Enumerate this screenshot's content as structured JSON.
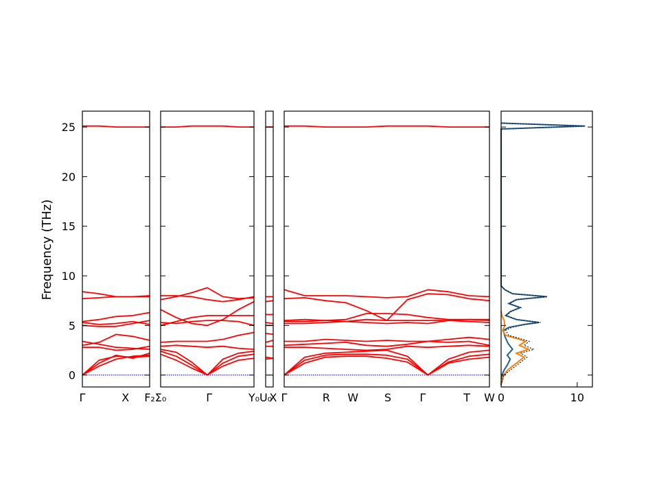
{
  "chart_data": {
    "type": "line",
    "ylabel": "Frequency (THz)",
    "ylim": [
      -1.2,
      26.6
    ],
    "y_ticks": [
      "0",
      "5",
      "10",
      "15",
      "20",
      "25"
    ],
    "y_tick_values": [
      0,
      5,
      10,
      15,
      20,
      25
    ],
    "band_color": "#ff0000",
    "zero_line_color": "#0000cc",
    "panels": [
      {
        "id": "panel-1",
        "x_ticks": [
          "Γ",
          "X",
          "F₂"
        ],
        "x_tick_pos": [
          0.0,
          0.64,
          1.0
        ],
        "bands": [
          {
            "y": [
              0.0,
              0.9,
              1.6,
              1.9,
              2.0
            ]
          },
          {
            "y": [
              0.0,
              1.2,
              2.0,
              1.7,
              2.2
            ]
          },
          {
            "y": [
              0.0,
              1.5,
              1.9,
              1.8,
              1.9
            ]
          },
          {
            "y": [
              2.8,
              2.8,
              2.5,
              2.6,
              2.9
            ]
          },
          {
            "y": [
              3.0,
              3.3,
              4.1,
              3.9,
              3.5
            ]
          },
          {
            "y": [
              3.4,
              3.1,
              2.8,
              2.7,
              2.6
            ]
          },
          {
            "y": [
              5.0,
              4.9,
              4.9,
              5.2,
              5.5
            ]
          },
          {
            "y": [
              5.3,
              5.1,
              5.2,
              5.4,
              5.1
            ]
          },
          {
            "y": [
              5.4,
              5.6,
              5.9,
              6.0,
              6.3
            ]
          },
          {
            "y": [
              7.7,
              7.8,
              7.9,
              7.9,
              8.0
            ]
          },
          {
            "y": [
              8.4,
              8.2,
              7.9,
              7.9,
              7.9
            ]
          },
          {
            "y": [
              25.1,
              25.1,
              25.0,
              25.0,
              25.0
            ]
          }
        ]
      },
      {
        "id": "panel-2",
        "x_ticks": [
          "Σ₀",
          "Γ",
          "Y₀"
        ],
        "x_tick_pos": [
          0.0,
          0.52,
          1.0
        ],
        "bands": [
          {
            "y": [
              2.1,
              1.5,
              0.7,
              0.0,
              0.9,
              1.5,
              1.7
            ]
          },
          {
            "y": [
              2.4,
              1.9,
              1.0,
              0.0,
              1.2,
              1.9,
              2.1
            ]
          },
          {
            "y": [
              2.6,
              2.3,
              1.3,
              0.0,
              1.6,
              2.2,
              2.4
            ]
          },
          {
            "y": [
              2.9,
              3.0,
              2.9,
              2.8,
              2.9,
              2.7,
              2.6
            ]
          },
          {
            "y": [
              3.3,
              3.4,
              3.4,
              3.4,
              3.6,
              4.0,
              4.3
            ]
          },
          {
            "y": [
              5.3,
              5.2,
              5.4,
              5.5,
              5.5,
              5.4,
              5.0
            ]
          },
          {
            "y": [
              5.0,
              5.4,
              5.8,
              6.0,
              6.0,
              6.0,
              6.0
            ]
          },
          {
            "y": [
              6.6,
              5.8,
              5.2,
              5.0,
              5.6,
              6.6,
              7.4
            ]
          },
          {
            "y": [
              7.6,
              7.9,
              8.3,
              8.8,
              7.9,
              7.7,
              7.8
            ]
          },
          {
            "y": [
              8.0,
              8.0,
              7.9,
              7.6,
              7.4,
              7.6,
              7.9
            ]
          },
          {
            "y": [
              25.0,
              25.0,
              25.1,
              25.1,
              25.1,
              25.0,
              25.0
            ]
          }
        ]
      },
      {
        "id": "panel-3",
        "x_ticks": [
          "U₀",
          "X"
        ],
        "x_tick_pos": [
          0.0,
          1.0
        ],
        "bands": [
          {
            "y": [
              1.6,
              1.7
            ]
          },
          {
            "y": [
              1.8,
              1.7
            ]
          },
          {
            "y": [
              2.9,
              2.9
            ]
          },
          {
            "y": [
              3.3,
              3.5
            ]
          },
          {
            "y": [
              4.2,
              4.1
            ]
          },
          {
            "y": [
              5.0,
              5.0
            ]
          },
          {
            "y": [
              5.3,
              5.2
            ]
          },
          {
            "y": [
              6.1,
              6.1
            ]
          },
          {
            "y": [
              7.4,
              7.5
            ]
          },
          {
            "y": [
              7.9,
              7.9
            ]
          },
          {
            "y": [
              25.0,
              25.0
            ]
          }
        ]
      },
      {
        "id": "panel-4",
        "x_ticks": [
          "Γ",
          "R",
          "W",
          "S",
          "Γ",
          "T",
          "W"
        ],
        "x_tick_pos": [
          0.0,
          0.205,
          0.335,
          0.505,
          0.675,
          0.89,
          1.0
        ],
        "bands": [
          {
            "y": [
              0.0,
              1.2,
              1.8,
              1.9,
              1.9,
              1.7,
              1.3,
              0.0,
              1.2,
              1.6,
              1.8
            ]
          },
          {
            "y": [
              0.0,
              1.5,
              2.0,
              2.1,
              2.1,
              2.0,
              1.6,
              0.0,
              1.3,
              1.9,
              2.1
            ]
          },
          {
            "y": [
              0.0,
              1.8,
              2.2,
              2.3,
              2.4,
              2.5,
              1.9,
              0.0,
              1.6,
              2.3,
              2.5
            ]
          },
          {
            "y": [
              2.8,
              2.8,
              2.7,
              2.6,
              2.5,
              2.6,
              2.9,
              2.8,
              2.9,
              3.0,
              2.9
            ]
          },
          {
            "y": [
              3.0,
              3.1,
              3.2,
              3.3,
              3.0,
              2.9,
              3.1,
              3.4,
              3.3,
              3.4,
              3.0
            ]
          },
          {
            "y": [
              3.4,
              3.4,
              3.6,
              3.5,
              3.4,
              3.5,
              3.4,
              3.4,
              3.6,
              3.8,
              3.6
            ]
          },
          {
            "y": [
              5.2,
              5.2,
              5.3,
              5.4,
              5.3,
              5.2,
              5.3,
              5.2,
              5.5,
              5.4,
              5.3
            ]
          },
          {
            "y": [
              5.4,
              5.4,
              5.5,
              5.4,
              5.6,
              5.5,
              5.5,
              5.5,
              5.5,
              5.6,
              5.5
            ]
          },
          {
            "y": [
              5.5,
              5.6,
              5.5,
              5.6,
              6.2,
              6.2,
              6.1,
              5.8,
              5.6,
              5.6,
              5.6
            ]
          },
          {
            "y": [
              7.7,
              7.8,
              7.5,
              7.3,
              6.5,
              5.5,
              7.6,
              8.2,
              8.1,
              7.7,
              7.5
            ]
          },
          {
            "y": [
              8.6,
              8.0,
              8.0,
              8.0,
              7.9,
              7.8,
              7.9,
              8.6,
              8.4,
              8.0,
              7.9
            ]
          },
          {
            "y": [
              25.1,
              25.1,
              25.0,
              25.0,
              25.0,
              25.1,
              25.1,
              25.1,
              25.0,
              25.0,
              25.0
            ]
          }
        ]
      }
    ],
    "dos": {
      "x_ticks": [
        "0",
        "10"
      ],
      "x_tick_values": [
        0,
        10
      ],
      "xlim": [
        0,
        12
      ],
      "series": [
        {
          "color": "#1f5f9a",
          "points": [
            [
              0.0,
              -1
            ],
            [
              0.1,
              0
            ],
            [
              0.4,
              0.5
            ],
            [
              0.8,
              1.0
            ],
            [
              1.2,
              1.6
            ],
            [
              0.8,
              2.0
            ],
            [
              1.5,
              2.6
            ],
            [
              0.9,
              3.2
            ],
            [
              0.5,
              3.9
            ],
            [
              0.3,
              4.5
            ],
            [
              1.0,
              4.8
            ],
            [
              3.0,
              5.1
            ],
            [
              5.0,
              5.3
            ],
            [
              2.0,
              5.6
            ],
            [
              0.6,
              6.0
            ],
            [
              1.2,
              6.4
            ],
            [
              2.5,
              6.8
            ],
            [
              1.0,
              7.2
            ],
            [
              2.0,
              7.6
            ],
            [
              6.0,
              7.9
            ],
            [
              1.5,
              8.2
            ],
            [
              0.5,
              8.6
            ],
            [
              0.0,
              9.0
            ],
            [
              0.0,
              24.8
            ],
            [
              11.0,
              25.1
            ],
            [
              0.0,
              25.4
            ]
          ]
        },
        {
          "color": "#ff8000",
          "points": [
            [
              0.0,
              -1
            ],
            [
              0.3,
              0
            ],
            [
              1.0,
              0.6
            ],
            [
              2.0,
              1.2
            ],
            [
              3.0,
              1.8
            ],
            [
              2.0,
              2.2
            ],
            [
              3.6,
              2.6
            ],
            [
              2.4,
              3.0
            ],
            [
              3.2,
              3.4
            ],
            [
              2.0,
              3.7
            ],
            [
              0.6,
              4.0
            ],
            [
              0.2,
              4.5
            ],
            [
              0.5,
              5.0
            ],
            [
              0.4,
              5.5
            ],
            [
              0.1,
              6.0
            ],
            [
              0.0,
              6.5
            ]
          ]
        },
        {
          "color": "#222222",
          "points": [
            [
              0.0,
              -1
            ],
            [
              0.4,
              0
            ],
            [
              1.4,
              0.6
            ],
            [
              2.4,
              1.2
            ],
            [
              3.4,
              1.8
            ],
            [
              2.6,
              2.2
            ],
            [
              4.3,
              2.6
            ],
            [
              3.0,
              3.0
            ],
            [
              3.7,
              3.4
            ],
            [
              2.4,
              3.7
            ],
            [
              1.0,
              4.0
            ],
            [
              0.6,
              4.5
            ],
            [
              1.4,
              4.8
            ],
            [
              3.2,
              5.1
            ],
            [
              5.2,
              5.3
            ],
            [
              2.1,
              5.6
            ],
            [
              0.7,
              6.0
            ],
            [
              1.3,
              6.4
            ],
            [
              2.6,
              6.8
            ],
            [
              1.1,
              7.2
            ],
            [
              2.1,
              7.6
            ],
            [
              6.1,
              7.9
            ],
            [
              1.5,
              8.2
            ],
            [
              0.5,
              8.6
            ],
            [
              0.0,
              9.0
            ],
            [
              0.0,
              24.8
            ],
            [
              11.1,
              25.1
            ],
            [
              0.0,
              25.4
            ]
          ]
        }
      ]
    }
  }
}
